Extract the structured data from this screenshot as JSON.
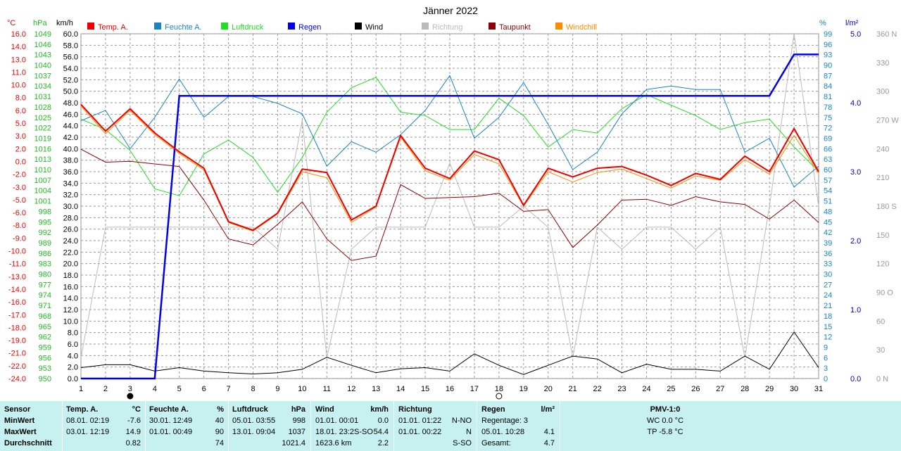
{
  "title": "Jänner 2022",
  "colors": {
    "temp": "#ee0000",
    "humidity": "#1a84c4",
    "pressure": "#22dd22",
    "rain": "#0000ee",
    "wind": "#000000",
    "direction": "#bbbbbb",
    "dewpoint": "#8b0000",
    "windchill": "#ff8c00"
  },
  "legend": [
    {
      "label": "Temp. A.",
      "color": "#ee0000"
    },
    {
      "label": "Feuchte A.",
      "color": "#1a84c4"
    },
    {
      "label": "Luftdruck",
      "color": "#22dd22"
    },
    {
      "label": "Regen",
      "color": "#0000ee"
    },
    {
      "label": "Wind",
      "color": "#000000"
    },
    {
      "label": "Richtung",
      "color": "#bbbbbb"
    },
    {
      "label": "Taupunkt",
      "color": "#8b0000"
    },
    {
      "label": "Windchill",
      "color": "#ff8c00"
    }
  ],
  "unit_labels": {
    "temp": "°C",
    "pressure": "hPa",
    "wind": "km/h",
    "humidity": "%",
    "rain": "l/m²",
    "direction": ""
  },
  "chart_data": {
    "type": "line",
    "title": "Jänner 2022",
    "x": [
      1,
      2,
      3,
      4,
      5,
      6,
      7,
      8,
      9,
      10,
      11,
      12,
      13,
      14,
      15,
      16,
      17,
      18,
      19,
      20,
      21,
      22,
      23,
      24,
      25,
      26,
      27,
      28,
      29,
      30,
      31
    ],
    "grid": true,
    "axes": {
      "temp": {
        "min": -24,
        "max": 16,
        "ticks": [
          "16.0",
          "14.0",
          "13.0",
          "11.0",
          "10.0",
          "8.0",
          "6.0",
          "5.0",
          "3.0",
          "2.0",
          "0.0",
          "-2.0",
          "-3.0",
          "-5.0",
          "-6.0",
          "-8.0",
          "-9.0",
          "-10.0",
          "-11.0",
          "-13.0",
          "-14.0",
          "-16.0",
          "-17.0",
          "-18.0",
          "-19.0",
          "-21.0",
          "-22.0",
          "-24.0"
        ]
      },
      "pressure": {
        "min": 950,
        "max": 1049,
        "ticks": [
          "1049",
          "1046",
          "1043",
          "1040",
          "1037",
          "1034",
          "1031",
          "1028",
          "1025",
          "1022",
          "1019",
          "1016",
          "1013",
          "1010",
          "1007",
          "1004",
          "1001",
          "998",
          "995",
          "992",
          "989",
          "986",
          "983",
          "980",
          "977",
          "974",
          "971",
          "968",
          "965",
          "962",
          "959",
          "956",
          "953",
          "950"
        ]
      },
      "wind": {
        "min": 0,
        "max": 60,
        "ticks": [
          "60.0",
          "58.0",
          "56.0",
          "54.0",
          "52.0",
          "50.0",
          "48.0",
          "46.0",
          "44.0",
          "42.0",
          "40.0",
          "38.0",
          "36.0",
          "34.0",
          "32.0",
          "30.0",
          "28.0",
          "26.0",
          "24.0",
          "22.0",
          "20.0",
          "18.0",
          "16.0",
          "14.0",
          "12.0",
          "10.0",
          "8.0",
          "6.0",
          "4.0",
          "2.0",
          "0.0"
        ]
      },
      "humidity": {
        "min": 0,
        "max": 100,
        "ticks": [
          "99",
          "96",
          "93",
          "90",
          "87",
          "84",
          "81",
          "78",
          "75",
          "72",
          "69",
          "66",
          "63",
          "60",
          "57",
          "54",
          "51",
          "48",
          "45",
          "42",
          "39",
          "36",
          "33",
          "30",
          "27",
          "24",
          "21",
          "18",
          "15",
          "12",
          "9",
          "6",
          "3",
          "0"
        ]
      },
      "rain": {
        "min": 0,
        "max": 5,
        "ticks": [
          "5.0",
          "4.0",
          "3.0",
          "2.0",
          "1.0",
          "0.0"
        ]
      },
      "direction": {
        "min": 0,
        "max": 360,
        "ticks": [
          "360 N",
          "330",
          "300",
          "270 W",
          "240",
          "210",
          "180 S",
          "150",
          "120",
          "90 O",
          "60",
          "30",
          "0 N"
        ]
      }
    },
    "series": [
      {
        "name": "Temp. A.",
        "axis": "temp",
        "values": [
          7.8,
          4.7,
          7.3,
          4.5,
          2.3,
          0.4,
          -5.8,
          -6.8,
          -4.8,
          0.3,
          -0.1,
          -5.6,
          -4.0,
          4.2,
          0.4,
          -0.8,
          2.4,
          1.4,
          -3.9,
          0.4,
          -0.6,
          0.4,
          0.6,
          -0.4,
          -1.6,
          -0.2,
          -0.9,
          1.8,
          0.0,
          5.0,
          0.0
        ]
      },
      {
        "name": "Windchill",
        "axis": "temp",
        "values": [
          7.6,
          4.4,
          7.1,
          4.3,
          2.1,
          0.2,
          -5.9,
          -6.9,
          -4.9,
          0.0,
          -0.7,
          -5.9,
          -4.1,
          4.0,
          0.1,
          -1.0,
          2.0,
          0.9,
          -4.0,
          0.0,
          -1.2,
          -0.1,
          0.3,
          -0.8,
          -1.9,
          -0.5,
          -1.0,
          1.4,
          -0.3,
          4.2,
          -0.2
        ]
      },
      {
        "name": "Taupunkt",
        "axis": "temp",
        "values": [
          2.6,
          1.1,
          1.2,
          0.9,
          0.6,
          -3.3,
          -7.8,
          -8.5,
          -6.1,
          -3.5,
          -7.8,
          -10.3,
          -9.8,
          -1.5,
          -3.1,
          -3.0,
          -2.9,
          -2.5,
          -4.6,
          -4.4,
          -8.8,
          -6.2,
          -3.3,
          -3.2,
          -3.9,
          -2.9,
          -3.5,
          -3.8,
          -5.5,
          -3.3,
          -5.9
        ]
      },
      {
        "name": "Feuchte A.",
        "axis": "humidity",
        "values": [
          74,
          77,
          66,
          75,
          86,
          75,
          81,
          81,
          79,
          76,
          61,
          68,
          65,
          70,
          77,
          87,
          69,
          75,
          85,
          73,
          60,
          65,
          76,
          83,
          84,
          83,
          83,
          65,
          69,
          55,
          61
        ]
      },
      {
        "name": "Luftdruck",
        "axis": "pressure",
        "values": [
          1024.5,
          1021.5,
          1015.5,
          1004.5,
          1002.5,
          1014.5,
          1018.5,
          1013.5,
          1003.5,
          1013.5,
          1026.5,
          1033.5,
          1036.5,
          1026.5,
          1025.5,
          1021.5,
          1021.5,
          1030.5,
          1025.5,
          1016.5,
          1021.5,
          1020.5,
          1027.5,
          1031.5,
          1028.5,
          1025.5,
          1021.5,
          1023.5,
          1024.5,
          1016.5,
          1009.5
        ]
      },
      {
        "name": "Regen",
        "axis": "rain",
        "values": [
          0,
          0,
          0,
          0,
          4.1,
          4.1,
          4.1,
          4.1,
          4.1,
          4.1,
          4.1,
          4.1,
          4.1,
          4.1,
          4.1,
          4.1,
          4.1,
          4.1,
          4.1,
          4.1,
          4.1,
          4.1,
          4.1,
          4.1,
          4.1,
          4.1,
          4.1,
          4.1,
          4.1,
          4.7,
          4.7
        ]
      },
      {
        "name": "Wind",
        "axis": "wind",
        "values": [
          1.9,
          2.4,
          2.4,
          1.3,
          1.9,
          1.3,
          1.0,
          0.8,
          1.0,
          1.6,
          3.7,
          2.3,
          1.0,
          1.7,
          1.9,
          1.3,
          4.3,
          2.3,
          0.7,
          2.3,
          3.9,
          3.4,
          1.0,
          2.5,
          1.6,
          1.6,
          1.3,
          3.9,
          1.6,
          8.1,
          1.9
        ]
      },
      {
        "name": "Richtung",
        "axis": "direction",
        "values": [
          22,
          158,
          158,
          158,
          158,
          158,
          158,
          158,
          135,
          270,
          22,
          135,
          158,
          158,
          158,
          225,
          158,
          158,
          180,
          158,
          22,
          158,
          135,
          158,
          158,
          135,
          158,
          22,
          180,
          360,
          180
        ]
      }
    ],
    "moon": [
      {
        "day": 3,
        "phase": "new"
      },
      {
        "day": 18,
        "phase": "full"
      }
    ]
  },
  "stats": {
    "row_labels": [
      "Sensor",
      "MinWert",
      "MaxWert",
      "Durchschnitt"
    ],
    "columns": [
      {
        "name": "Temp. A.",
        "unit": "°C",
        "min_time": "08.01.  02:19",
        "min_val": "-7.6",
        "max_time": "03.01.  12:19",
        "max_val": "14.9",
        "avg": "0.82"
      },
      {
        "name": "Feuchte A.",
        "unit": "%",
        "min_time": "30.01.  12:49",
        "min_val": "40",
        "max_time": "01.01.  00:49",
        "max_val": "90",
        "avg": "74"
      },
      {
        "name": "Luftdruck",
        "unit": "hPa",
        "min_time": "05.01.  03:55",
        "min_val": "998",
        "max_time": "13.01.  09:04",
        "max_val": "1037",
        "avg": "1021.4"
      },
      {
        "name": "Wind",
        "unit": "km/h",
        "min_time": "01.01.  00:01",
        "min_val": "0.0",
        "max_time": "18.01.  23:2S-SO",
        "max_val": "54.4",
        "avg_left": "1623.6 km",
        "avg": "2.2"
      },
      {
        "name": "Richtung",
        "unit": "",
        "min_time": "01.01.  01:22",
        "min_val": "N-NO",
        "max_time": "01.01.  00:22",
        "max_val": "N",
        "avg": "S-SO"
      },
      {
        "name": "Regen",
        "unit": "l/m²",
        "min_time": "Regentage: 3",
        "min_val": "",
        "max_time": "05.01.  10:28",
        "max_val": "4.1",
        "avg_left": "Gesamt:",
        "avg": "4.7"
      }
    ],
    "pmv": {
      "title": "PMV-1:0",
      "wc": "WC 0.0 °C",
      "tp": "TP -5.8 °C"
    }
  }
}
